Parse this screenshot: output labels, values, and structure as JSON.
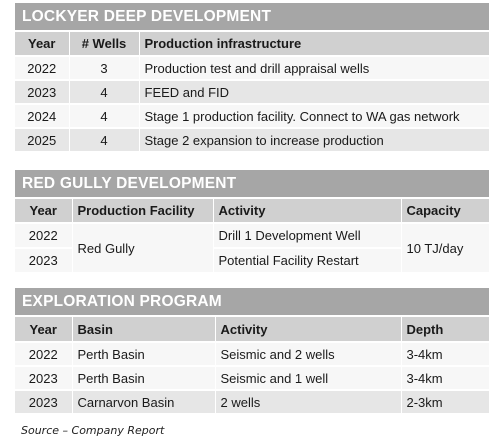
{
  "lockyer": {
    "title": "LOCKYER DEEP DEVELOPMENT",
    "headers": [
      "Year",
      "# Wells",
      "Production infrastructure"
    ],
    "rows": [
      {
        "year": "2022",
        "wells": "3",
        "infra": "Production test and drill appraisal wells"
      },
      {
        "year": "2023",
        "wells": "4",
        "infra": "FEED and FID"
      },
      {
        "year": "2024",
        "wells": "4",
        "infra": "Stage 1 production facility. Connect to WA gas network"
      },
      {
        "year": "2025",
        "wells": "4",
        "infra": "Stage 2 expansion to increase production"
      }
    ]
  },
  "redgully": {
    "title": "RED GULLY DEVELOPMENT",
    "headers": [
      "Year",
      "Production Facility",
      "Activity",
      "Capacity"
    ],
    "facility": "Red Gully",
    "capacity": "10 TJ/day",
    "rows": [
      {
        "year": "2022",
        "activity": "Drill 1 Development Well"
      },
      {
        "year": "2023",
        "activity": "Potential Facility Restart"
      }
    ]
  },
  "exploration": {
    "title": "EXPLORATION PROGRAM",
    "headers": [
      "Year",
      "Basin",
      "Activity",
      "Depth"
    ],
    "rows": [
      {
        "year": "2022",
        "basin": "Perth Basin",
        "activity": "Seismic and 2 wells",
        "depth": "3-4km"
      },
      {
        "year": "2023",
        "basin": "Perth Basin",
        "activity": "Seismic and 1 well",
        "depth": "3-4km"
      },
      {
        "year": "2023",
        "basin": "Carnarvon Basin",
        "activity": "2 wells",
        "depth": "2-3km"
      }
    ]
  },
  "source": "Source – Company Report"
}
